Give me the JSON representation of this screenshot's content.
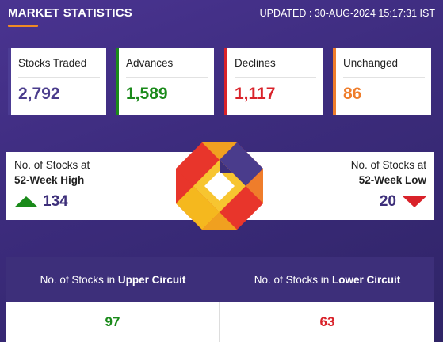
{
  "header": {
    "title": "MARKET STATISTICS",
    "updated": "UPDATED : 30-AUG-2024 15:17:31 IST"
  },
  "cards": [
    {
      "label": "Stocks Traded",
      "value": "2,792",
      "color": "#4a3c8c"
    },
    {
      "label": "Advances",
      "value": "1,589",
      "color": "#1a8a1a"
    },
    {
      "label": "Declines",
      "value": "1,117",
      "color": "#d9222a"
    },
    {
      "label": "Unchanged",
      "value": "86",
      "color": "#ef7d2b"
    }
  ],
  "week52": {
    "high": {
      "line1": "No. of Stocks at",
      "line2": "52-Week High",
      "value": "134",
      "icon": "triangle-up-icon"
    },
    "low": {
      "line1": "No. of Stocks at",
      "line2": "52-Week Low",
      "value": "20",
      "icon": "triangle-down-icon"
    }
  },
  "circuit": {
    "upper": {
      "prefix": "No. of Stocks in ",
      "emph": "Upper Circuit",
      "value": "97"
    },
    "lower": {
      "prefix": "No. of Stocks in ",
      "emph": "Lower Circuit",
      "value": "63"
    }
  },
  "colors": {
    "brand_purple": "#3d2f7a",
    "accent_orange": "#f08a24",
    "green": "#1a8a1a",
    "red": "#d9222a"
  }
}
